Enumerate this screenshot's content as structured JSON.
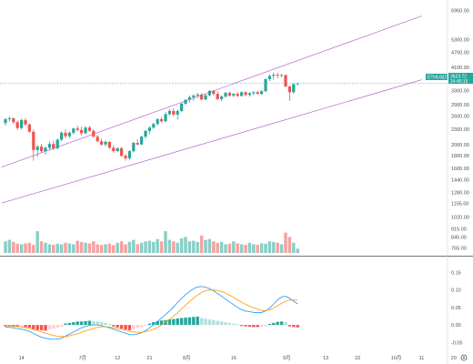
{
  "chart_data": [
    {
      "type": "candlestick",
      "symbol_tag": "ETHUSDT",
      "last_price": "3523.72",
      "countdown": "14:40:15",
      "y_scale": "log",
      "ylim": [
        730,
        7400
      ],
      "y_ticks": [
        "6950.00",
        "5300.00",
        "4700.00",
        "4100.00",
        "3700.00",
        "3300.00",
        "2900.00",
        "2600.00",
        "2300.00",
        "2000.00",
        "1800.00",
        "1600.00",
        "1440.00",
        "1280.00",
        "1155.00",
        "1020.00",
        "915.00",
        "845.00",
        "765.00"
      ],
      "x_ticks": [
        "14",
        "7月",
        "12",
        "21",
        "8月",
        "16",
        "9月",
        "13",
        "22",
        "10月",
        "11",
        "20"
      ],
      "candles": [
        {
          "o": 2440,
          "h": 2560,
          "l": 2380,
          "c": 2530
        },
        {
          "o": 2530,
          "h": 2600,
          "l": 2480,
          "c": 2550
        },
        {
          "o": 2550,
          "h": 2580,
          "l": 2420,
          "c": 2460
        },
        {
          "o": 2460,
          "h": 2500,
          "l": 2290,
          "c": 2330
        },
        {
          "o": 2330,
          "h": 2540,
          "l": 2300,
          "c": 2510
        },
        {
          "o": 2510,
          "h": 2560,
          "l": 2380,
          "c": 2410
        },
        {
          "o": 2410,
          "h": 2430,
          "l": 2230,
          "c": 2250
        },
        {
          "o": 2250,
          "h": 2300,
          "l": 1720,
          "c": 1900
        },
        {
          "o": 1900,
          "h": 1990,
          "l": 1780,
          "c": 1960
        },
        {
          "o": 1960,
          "h": 2010,
          "l": 1850,
          "c": 1880
        },
        {
          "o": 1880,
          "h": 1960,
          "l": 1820,
          "c": 1940
        },
        {
          "o": 1940,
          "h": 2060,
          "l": 1900,
          "c": 2010
        },
        {
          "o": 2010,
          "h": 2070,
          "l": 1900,
          "c": 1930
        },
        {
          "o": 1930,
          "h": 2120,
          "l": 1910,
          "c": 2090
        },
        {
          "o": 2090,
          "h": 2260,
          "l": 2060,
          "c": 2230
        },
        {
          "o": 2230,
          "h": 2300,
          "l": 2120,
          "c": 2160
        },
        {
          "o": 2160,
          "h": 2260,
          "l": 2120,
          "c": 2230
        },
        {
          "o": 2230,
          "h": 2340,
          "l": 2190,
          "c": 2320
        },
        {
          "o": 2320,
          "h": 2380,
          "l": 2260,
          "c": 2290
        },
        {
          "o": 2290,
          "h": 2360,
          "l": 2180,
          "c": 2220
        },
        {
          "o": 2220,
          "h": 2370,
          "l": 2190,
          "c": 2340
        },
        {
          "o": 2340,
          "h": 2380,
          "l": 2250,
          "c": 2270
        },
        {
          "o": 2270,
          "h": 2300,
          "l": 2130,
          "c": 2150
        },
        {
          "o": 2150,
          "h": 2190,
          "l": 2040,
          "c": 2060
        },
        {
          "o": 2060,
          "h": 2110,
          "l": 1980,
          "c": 2000
        },
        {
          "o": 2000,
          "h": 2080,
          "l": 1960,
          "c": 2050
        },
        {
          "o": 2050,
          "h": 2060,
          "l": 1920,
          "c": 1940
        },
        {
          "o": 1940,
          "h": 1990,
          "l": 1850,
          "c": 1880
        },
        {
          "o": 1880,
          "h": 1950,
          "l": 1860,
          "c": 1930
        },
        {
          "o": 1930,
          "h": 1960,
          "l": 1780,
          "c": 1800
        },
        {
          "o": 1800,
          "h": 1830,
          "l": 1720,
          "c": 1760
        },
        {
          "o": 1760,
          "h": 1900,
          "l": 1730,
          "c": 1880
        },
        {
          "o": 1880,
          "h": 2050,
          "l": 1860,
          "c": 2030
        },
        {
          "o": 2030,
          "h": 2100,
          "l": 1980,
          "c": 2000
        },
        {
          "o": 2000,
          "h": 2170,
          "l": 1990,
          "c": 2150
        },
        {
          "o": 2150,
          "h": 2290,
          "l": 2110,
          "c": 2270
        },
        {
          "o": 2270,
          "h": 2370,
          "l": 2200,
          "c": 2340
        },
        {
          "o": 2340,
          "h": 2450,
          "l": 2310,
          "c": 2420
        },
        {
          "o": 2420,
          "h": 2550,
          "l": 2380,
          "c": 2530
        },
        {
          "o": 2530,
          "h": 2580,
          "l": 2450,
          "c": 2480
        },
        {
          "o": 2480,
          "h": 2700,
          "l": 2460,
          "c": 2650
        },
        {
          "o": 2650,
          "h": 2780,
          "l": 2620,
          "c": 2730
        },
        {
          "o": 2730,
          "h": 2800,
          "l": 2600,
          "c": 2640
        },
        {
          "o": 2640,
          "h": 2770,
          "l": 2520,
          "c": 2730
        },
        {
          "o": 2730,
          "h": 2950,
          "l": 2700,
          "c": 2920
        },
        {
          "o": 2920,
          "h": 3050,
          "l": 2880,
          "c": 3030
        },
        {
          "o": 3030,
          "h": 3150,
          "l": 2950,
          "c": 3100
        },
        {
          "o": 3100,
          "h": 3190,
          "l": 3000,
          "c": 3150
        },
        {
          "o": 3150,
          "h": 3230,
          "l": 3080,
          "c": 3180
        },
        {
          "o": 3180,
          "h": 3220,
          "l": 3010,
          "c": 3040
        },
        {
          "o": 3040,
          "h": 3190,
          "l": 3010,
          "c": 3160
        },
        {
          "o": 3160,
          "h": 3320,
          "l": 3120,
          "c": 3290
        },
        {
          "o": 3290,
          "h": 3320,
          "l": 3150,
          "c": 3200
        },
        {
          "o": 3200,
          "h": 3280,
          "l": 3020,
          "c": 3050
        },
        {
          "o": 3050,
          "h": 3150,
          "l": 2990,
          "c": 3120
        },
        {
          "o": 3120,
          "h": 3260,
          "l": 3090,
          "c": 3230
        },
        {
          "o": 3230,
          "h": 3270,
          "l": 3120,
          "c": 3150
        },
        {
          "o": 3150,
          "h": 3230,
          "l": 3100,
          "c": 3200
        },
        {
          "o": 3200,
          "h": 3260,
          "l": 3110,
          "c": 3140
        },
        {
          "o": 3140,
          "h": 3280,
          "l": 3120,
          "c": 3250
        },
        {
          "o": 3250,
          "h": 3280,
          "l": 3130,
          "c": 3170
        },
        {
          "o": 3170,
          "h": 3250,
          "l": 3120,
          "c": 3220
        },
        {
          "o": 3220,
          "h": 3290,
          "l": 3160,
          "c": 3250
        },
        {
          "o": 3250,
          "h": 3300,
          "l": 3180,
          "c": 3200
        },
        {
          "o": 3200,
          "h": 3310,
          "l": 3170,
          "c": 3280
        },
        {
          "o": 3280,
          "h": 3700,
          "l": 3260,
          "c": 3670
        },
        {
          "o": 3670,
          "h": 3830,
          "l": 3600,
          "c": 3780
        },
        {
          "o": 3780,
          "h": 3900,
          "l": 3650,
          "c": 3820
        },
        {
          "o": 3820,
          "h": 3900,
          "l": 3700,
          "c": 3790
        },
        {
          "o": 3790,
          "h": 3860,
          "l": 3740,
          "c": 3810
        },
        {
          "o": 3810,
          "h": 3830,
          "l": 3400,
          "c": 3430
        },
        {
          "o": 3430,
          "h": 3450,
          "l": 3000,
          "c": 3250
        },
        {
          "o": 3250,
          "h": 3540,
          "l": 3200,
          "c": 3500
        },
        {
          "o": 3500,
          "h": 3560,
          "l": 3460,
          "c": 3523.72
        }
      ],
      "volumes": [
        0.4,
        0.45,
        0.38,
        0.32,
        0.3,
        0.33,
        0.35,
        0.28,
        0.75,
        0.4,
        0.35,
        0.3,
        0.28,
        0.32,
        0.3,
        0.35,
        0.33,
        0.3,
        0.42,
        0.38,
        0.35,
        0.33,
        0.4,
        0.3,
        0.28,
        0.3,
        0.32,
        0.27,
        0.35,
        0.4,
        0.3,
        0.38,
        0.45,
        0.3,
        0.35,
        0.4,
        0.42,
        0.38,
        0.48,
        0.4,
        0.75,
        0.45,
        0.4,
        0.35,
        0.5,
        0.55,
        0.4,
        0.42,
        0.38,
        0.6,
        0.45,
        0.48,
        0.4,
        0.35,
        0.38,
        0.3,
        0.32,
        0.4,
        0.33,
        0.3,
        0.28,
        0.35,
        0.3,
        0.28,
        0.33,
        0.32,
        0.4,
        0.38,
        0.35,
        0.3,
        0.7,
        0.55,
        0.35,
        0.15
      ],
      "trend_lines": [
        {
          "from": [
            -1,
            1620
          ],
          "to": [
            104,
            6600
          ]
        },
        {
          "from": [
            -1,
            1160
          ],
          "to": [
            104,
            3650
          ]
        }
      ],
      "horizontal_line": 3523.72,
      "colors": {
        "up": "#26a69a",
        "down": "#ef5350",
        "trend": "#b561d3",
        "price_tag": "#26a69a"
      }
    },
    {
      "type": "macd",
      "ylim": [
        -0.07,
        0.18
      ],
      "y_ticks": [
        "0.15",
        "0.10",
        "0.05",
        "0.00",
        "-0.05"
      ],
      "histogram": [
        -0.004,
        -0.004,
        -0.005,
        -0.005,
        -0.004,
        -0.006,
        -0.008,
        -0.012,
        -0.014,
        -0.015,
        -0.016,
        -0.013,
        -0.011,
        -0.008,
        -0.005,
        0.004,
        0.006,
        0.008,
        0.01,
        0.01,
        0.011,
        0.012,
        0.011,
        0.01,
        0.008,
        0.006,
        0.003,
        -0.004,
        -0.007,
        -0.01,
        -0.013,
        -0.015,
        -0.012,
        -0.009,
        -0.006,
        -0.003,
        0.004,
        0.008,
        0.011,
        0.013,
        0.014,
        0.016,
        0.017,
        0.019,
        0.02,
        0.021,
        0.022,
        0.023,
        0.024,
        0.02,
        0.018,
        0.016,
        0.014,
        0.012,
        0.01,
        0.008,
        0.006,
        0.004,
        0.003,
        -0.003,
        -0.004,
        -0.005,
        -0.006,
        -0.006,
        -0.005,
        -0.004,
        0.003,
        0.006,
        0.009,
        0.01,
        0.008,
        -0.004,
        -0.006,
        -0.007
      ],
      "macd_line": [
        -0.006,
        -0.007,
        -0.008,
        -0.01,
        -0.012,
        -0.015,
        -0.018,
        -0.024,
        -0.03,
        -0.035,
        -0.038,
        -0.04,
        -0.041,
        -0.04,
        -0.038,
        -0.032,
        -0.026,
        -0.02,
        -0.014,
        -0.008,
        -0.004,
        -0.001,
        0.0,
        0.0,
        -0.002,
        -0.005,
        -0.008,
        -0.012,
        -0.016,
        -0.02,
        -0.024,
        -0.027,
        -0.028,
        -0.026,
        -0.022,
        -0.016,
        -0.008,
        0.0,
        0.01,
        0.02,
        0.03,
        0.04,
        0.052,
        0.064,
        0.076,
        0.087,
        0.096,
        0.104,
        0.109,
        0.11,
        0.108,
        0.104,
        0.098,
        0.09,
        0.082,
        0.074,
        0.066,
        0.058,
        0.05,
        0.044,
        0.04,
        0.038,
        0.036,
        0.035,
        0.036,
        0.04,
        0.048,
        0.06,
        0.072,
        0.08,
        0.082,
        0.076,
        0.068,
        0.06
      ],
      "signal_line": [
        -0.001,
        -0.002,
        -0.003,
        -0.004,
        -0.006,
        -0.008,
        -0.01,
        -0.013,
        -0.016,
        -0.02,
        -0.024,
        -0.027,
        -0.03,
        -0.032,
        -0.033,
        -0.033,
        -0.031,
        -0.028,
        -0.025,
        -0.021,
        -0.017,
        -0.013,
        -0.01,
        -0.007,
        -0.005,
        -0.005,
        -0.006,
        -0.008,
        -0.01,
        -0.012,
        -0.015,
        -0.018,
        -0.02,
        -0.021,
        -0.021,
        -0.019,
        -0.016,
        -0.012,
        -0.007,
        0.0,
        0.008,
        0.016,
        0.025,
        0.035,
        0.046,
        0.057,
        0.067,
        0.077,
        0.086,
        0.093,
        0.098,
        0.1,
        0.1,
        0.099,
        0.096,
        0.091,
        0.085,
        0.079,
        0.072,
        0.065,
        0.059,
        0.054,
        0.049,
        0.045,
        0.042,
        0.041,
        0.043,
        0.048,
        0.055,
        0.062,
        0.068,
        0.071,
        0.072,
        0.071
      ],
      "colors": {
        "hist_up": "#26a69a",
        "hist_up_fade": "#b2dfdb",
        "hist_down": "#ef5350",
        "hist_down_fade": "#ffcdd2",
        "macd": "#2196f3",
        "signal": "#ff9800"
      }
    }
  ],
  "ui": {
    "settings_icon": "gear-icon"
  }
}
